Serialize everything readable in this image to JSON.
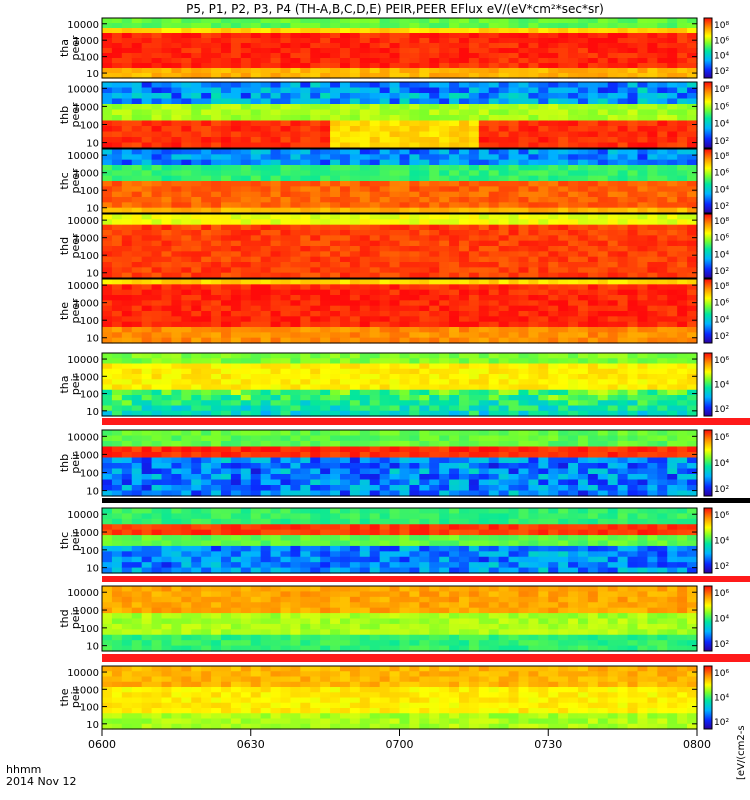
{
  "title": "P5, P1, P2, P3, P4 (TH-A,B,C,D,E) PEIR,PEER EFlux eV/(eV*cm²*sec*sr)",
  "colorbar_label": "[eV/(cm2-s",
  "chart_data": {
    "type": "heatmap",
    "xlabel_time": "hhmm",
    "xlabel_date": "2014 Nov 12",
    "x_ticks": [
      "0600",
      "0630",
      "0700",
      "0730",
      "0800"
    ],
    "x_range": [
      "0600",
      "0800"
    ],
    "y_scale": "log",
    "y_ticks": [
      "10",
      "100",
      "1000",
      "10000"
    ],
    "panels": [
      {
        "ylabel": [
          "tha",
          "peer"
        ],
        "cbar_ticks": [
          "10⁸",
          "10⁶",
          "10⁴",
          "10²"
        ]
      },
      {
        "ylabel": [
          "thb",
          "peer"
        ],
        "cbar_ticks": [
          "10⁸",
          "10⁶",
          "10⁴",
          "10²"
        ]
      },
      {
        "ylabel": [
          "thc",
          "peer"
        ],
        "cbar_ticks": [
          "10⁸",
          "10⁶",
          "10⁴",
          "10²"
        ]
      },
      {
        "ylabel": [
          "thd",
          "peer"
        ],
        "cbar_ticks": [
          "10⁸",
          "10⁶",
          "10⁴",
          "10²"
        ]
      },
      {
        "ylabel": [
          "the",
          "peer"
        ],
        "cbar_ticks": [
          "10⁸",
          "10⁶",
          "10⁴",
          "10²"
        ]
      },
      {
        "ylabel": [
          "tha",
          "peir"
        ],
        "cbar_ticks": [
          "10⁶",
          "10⁴",
          "10²"
        ]
      },
      {
        "ylabel": [
          "thb",
          "peir"
        ],
        "cbar_ticks": [
          "10⁶",
          "10⁴",
          "10²"
        ]
      },
      {
        "ylabel": [
          "thc",
          "peir"
        ],
        "cbar_ticks": [
          "10⁶",
          "10⁴",
          "10²"
        ]
      },
      {
        "ylabel": [
          "thd",
          "peir"
        ],
        "cbar_ticks": [
          "10⁶",
          "10⁴",
          "10²"
        ]
      },
      {
        "ylabel": [
          "the",
          "peir"
        ],
        "cbar_ticks": [
          "10⁶",
          "10⁴",
          "10²"
        ]
      }
    ]
  }
}
